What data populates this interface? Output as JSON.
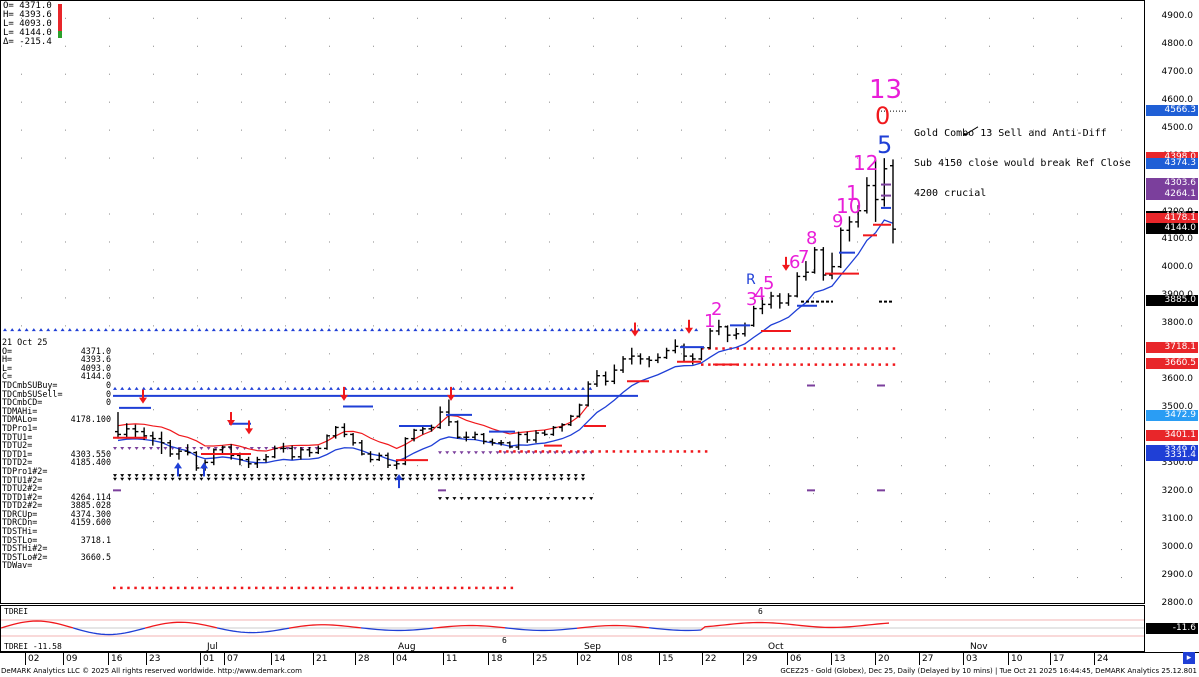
{
  "ohlc_box": {
    "lines": [
      "O= 4371.0",
      "H= 4393.6",
      "L= 4093.0",
      "L= 4144.0",
      "Δ= -215.4"
    ]
  },
  "info_panel": {
    "date": "21 Oct 25",
    "rows": [
      {
        "label": "O=",
        "value": "4371.0"
      },
      {
        "label": "H=",
        "value": "4393.6"
      },
      {
        "label": "L=",
        "value": "4093.0"
      },
      {
        "label": "C=",
        "value": "4144.0"
      },
      {
        "label": "TDCmbSUBuy=",
        "value": "0"
      },
      {
        "label": "TDCmbSUSell=",
        "value": "0"
      },
      {
        "label": "TDCmbCD=",
        "value": "0"
      },
      {
        "label": "TDMAHi=",
        "value": ""
      },
      {
        "label": "TDMALo=",
        "value": "4178.100"
      },
      {
        "label": "TDPro1=",
        "value": ""
      },
      {
        "label": "TDTU1=",
        "value": ""
      },
      {
        "label": "TDTU2=",
        "value": ""
      },
      {
        "label": "TDTD1=",
        "value": "4303.550"
      },
      {
        "label": "TDTD2=",
        "value": "4185.400"
      },
      {
        "label": "TDPro1#2=",
        "value": ""
      },
      {
        "label": "TDTU1#2=",
        "value": ""
      },
      {
        "label": "TDTU2#2=",
        "value": ""
      },
      {
        "label": "TDTD1#2=",
        "value": "4264.114"
      },
      {
        "label": "TDTD2#2=",
        "value": "3885.028"
      },
      {
        "label": "TDRCUp=",
        "value": "4374.300"
      },
      {
        "label": "TDRCDn=",
        "value": "4159.600"
      },
      {
        "label": "TDSTHi=",
        "value": ""
      },
      {
        "label": "TDSTLo=",
        "value": "3718.1"
      },
      {
        "label": "TDSTHi#2=",
        "value": ""
      },
      {
        "label": "TDSTLo#2=",
        "value": "3660.5"
      },
      {
        "label": "TDWav=",
        "value": ""
      }
    ]
  },
  "annotation": {
    "lines": [
      "Gold Combo 13 Sell and Anti-Diff",
      "Sub 4150 close would break Ref Close",
      "4200 crucial"
    ]
  },
  "count_labels": {
    "combo13": "13",
    "zero": "0",
    "five": "5",
    "twelve": "12",
    "eleven": "1",
    "ten": "10",
    "nine": "9",
    "eight": "8",
    "seven": "7",
    "six": "6",
    "r": "R",
    "five_b": "5",
    "four": "4",
    "three": "3",
    "two": "2",
    "one": "1"
  },
  "price_axis": {
    "ticks": [
      "4900.0",
      "4800.0",
      "4700.0",
      "4600.0",
      "4500.0",
      "4400.0",
      "4200.0",
      "4100.0",
      "4000.0",
      "3900.0",
      "3800.0",
      "3700.0",
      "3600.0",
      "3500.0",
      "3400.0",
      "3300.0",
      "3200.0",
      "3100.0",
      "3000.0",
      "2900.0",
      "2800.0"
    ],
    "labels": [
      {
        "text": "4566.3",
        "color": "#1f5fd6"
      },
      {
        "text": "4398.0",
        "color": "#e8262a"
      },
      {
        "text": "4374.3",
        "color": "#1f5fd6"
      },
      {
        "text": "4303.6",
        "color": "#7b3f9c"
      },
      {
        "text": "4264.1",
        "color": "#7b3f9c"
      },
      {
        "text": "4185.4",
        "color": "#000000"
      },
      {
        "text": "4178.1",
        "color": "#e8262a"
      },
      {
        "text": "4144.0",
        "color": "#000000"
      },
      {
        "text": "3885.0",
        "color": "#000000"
      },
      {
        "text": "3718.1",
        "color": "#e8262a"
      },
      {
        "text": "3660.5",
        "color": "#e8262a"
      },
      {
        "text": "3472.9",
        "color": "#2a9df4"
      },
      {
        "text": "3401.1",
        "color": "#e8262a"
      },
      {
        "text": "3349.0",
        "color": "#1f3fd6"
      },
      {
        "text": "3331.4",
        "color": "#1f3fd6"
      }
    ]
  },
  "sub_panel": {
    "label": "TDREI",
    "value_text": "TDREI  -11.58",
    "axis_label": "-11.6",
    "six_top": "6",
    "six_bottom": "6"
  },
  "date_axis": {
    "months": [
      "Jul",
      "Aug",
      "Sep",
      "Oct",
      "Nov"
    ],
    "days": [
      "02",
      "09",
      "16",
      "23",
      "01",
      "07",
      "14",
      "21",
      "28",
      "04",
      "11",
      "18",
      "25",
      "02",
      "08",
      "15",
      "22",
      "29",
      "06",
      "13",
      "20",
      "27",
      "03",
      "10",
      "17",
      "24"
    ]
  },
  "footer": {
    "left": "DeMARK Analytics LLC © 2025 All rights reserved worldwide. http://www.demark.com",
    "right": "GCEZ25 - Gold (Globex), Dec 25, Daily (Delayed by 10 mins) | Tue Oct 21 2025 16:44:45, DeMARK Analytics 25.12.801"
  },
  "chart_data": {
    "type": "ohlc",
    "title": "GCEZ25 - Gold (Globex), Dec 25, Daily",
    "ylim": [
      2800,
      4960
    ],
    "bars": [
      {
        "date": "2025-06-16",
        "o": 3420,
        "h": 3490,
        "l": 3395,
        "c": 3410
      },
      {
        "date": "2025-06-17",
        "o": 3410,
        "h": 3450,
        "l": 3395,
        "c": 3430
      },
      {
        "date": "2025-06-18",
        "o": 3430,
        "h": 3445,
        "l": 3400,
        "c": 3420
      },
      {
        "date": "2025-06-19",
        "o": 3420,
        "h": 3435,
        "l": 3390,
        "c": 3405
      },
      {
        "date": "2025-06-20",
        "o": 3405,
        "h": 3420,
        "l": 3370,
        "c": 3395
      },
      {
        "date": "2025-06-23",
        "o": 3395,
        "h": 3420,
        "l": 3340,
        "c": 3380
      },
      {
        "date": "2025-06-24",
        "o": 3380,
        "h": 3390,
        "l": 3330,
        "c": 3340
      },
      {
        "date": "2025-06-25",
        "o": 3340,
        "h": 3360,
        "l": 3320,
        "c": 3350
      },
      {
        "date": "2025-06-26",
        "o": 3350,
        "h": 3375,
        "l": 3335,
        "c": 3345
      },
      {
        "date": "2025-06-27",
        "o": 3345,
        "h": 3350,
        "l": 3280,
        "c": 3290
      },
      {
        "date": "2025-06-30",
        "o": 3290,
        "h": 3320,
        "l": 3280,
        "c": 3310
      },
      {
        "date": "2025-07-01",
        "o": 3310,
        "h": 3360,
        "l": 3300,
        "c": 3355
      },
      {
        "date": "2025-07-02",
        "o": 3355,
        "h": 3370,
        "l": 3340,
        "c": 3365
      },
      {
        "date": "2025-07-03",
        "o": 3365,
        "h": 3375,
        "l": 3320,
        "c": 3335
      },
      {
        "date": "2025-07-07",
        "o": 3335,
        "h": 3345,
        "l": 3300,
        "c": 3320
      },
      {
        "date": "2025-07-08",
        "o": 3320,
        "h": 3330,
        "l": 3290,
        "c": 3305
      },
      {
        "date": "2025-07-09",
        "o": 3305,
        "h": 3330,
        "l": 3290,
        "c": 3320
      },
      {
        "date": "2025-07-10",
        "o": 3320,
        "h": 3340,
        "l": 3310,
        "c": 3330
      },
      {
        "date": "2025-07-11",
        "o": 3330,
        "h": 3370,
        "l": 3325,
        "c": 3360
      },
      {
        "date": "2025-07-14",
        "o": 3360,
        "h": 3380,
        "l": 3345,
        "c": 3360
      },
      {
        "date": "2025-07-15",
        "o": 3360,
        "h": 3370,
        "l": 3320,
        "c": 3330
      },
      {
        "date": "2025-07-16",
        "o": 3330,
        "h": 3365,
        "l": 3320,
        "c": 3355
      },
      {
        "date": "2025-07-17",
        "o": 3355,
        "h": 3365,
        "l": 3330,
        "c": 3345
      },
      {
        "date": "2025-07-18",
        "o": 3345,
        "h": 3370,
        "l": 3340,
        "c": 3360
      },
      {
        "date": "2025-07-21",
        "o": 3360,
        "h": 3410,
        "l": 3355,
        "c": 3405
      },
      {
        "date": "2025-07-22",
        "o": 3405,
        "h": 3440,
        "l": 3395,
        "c": 3435
      },
      {
        "date": "2025-07-23",
        "o": 3435,
        "h": 3450,
        "l": 3400,
        "c": 3410
      },
      {
        "date": "2025-07-24",
        "o": 3410,
        "h": 3415,
        "l": 3370,
        "c": 3380
      },
      {
        "date": "2025-07-25",
        "o": 3380,
        "h": 3390,
        "l": 3335,
        "c": 3340
      },
      {
        "date": "2025-07-28",
        "o": 3340,
        "h": 3350,
        "l": 3310,
        "c": 3320
      },
      {
        "date": "2025-07-29",
        "o": 3320,
        "h": 3345,
        "l": 3315,
        "c": 3335
      },
      {
        "date": "2025-07-30",
        "o": 3335,
        "h": 3345,
        "l": 3290,
        "c": 3300
      },
      {
        "date": "2025-07-31",
        "o": 3300,
        "h": 3320,
        "l": 3285,
        "c": 3305
      },
      {
        "date": "2025-08-01",
        "o": 3305,
        "h": 3400,
        "l": 3300,
        "c": 3395
      },
      {
        "date": "2025-08-04",
        "o": 3395,
        "h": 3430,
        "l": 3385,
        "c": 3425
      },
      {
        "date": "2025-08-05",
        "o": 3425,
        "h": 3440,
        "l": 3410,
        "c": 3430
      },
      {
        "date": "2025-08-06",
        "o": 3430,
        "h": 3445,
        "l": 3420,
        "c": 3435
      },
      {
        "date": "2025-08-07",
        "o": 3435,
        "h": 3510,
        "l": 3430,
        "c": 3490
      },
      {
        "date": "2025-08-08",
        "o": 3490,
        "h": 3535,
        "l": 3440,
        "c": 3455
      },
      {
        "date": "2025-08-11",
        "o": 3455,
        "h": 3460,
        "l": 3395,
        "c": 3400
      },
      {
        "date": "2025-08-12",
        "o": 3400,
        "h": 3420,
        "l": 3385,
        "c": 3400
      },
      {
        "date": "2025-08-13",
        "o": 3400,
        "h": 3420,
        "l": 3390,
        "c": 3410
      },
      {
        "date": "2025-08-14",
        "o": 3410,
        "h": 3415,
        "l": 3375,
        "c": 3385
      },
      {
        "date": "2025-08-15",
        "o": 3385,
        "h": 3395,
        "l": 3370,
        "c": 3380
      },
      {
        "date": "2025-08-18",
        "o": 3380,
        "h": 3390,
        "l": 3370,
        "c": 3380
      },
      {
        "date": "2025-08-19",
        "o": 3380,
        "h": 3385,
        "l": 3360,
        "c": 3365
      },
      {
        "date": "2025-08-20",
        "o": 3365,
        "h": 3420,
        "l": 3355,
        "c": 3410
      },
      {
        "date": "2025-08-21",
        "o": 3410,
        "h": 3420,
        "l": 3380,
        "c": 3390
      },
      {
        "date": "2025-08-22",
        "o": 3390,
        "h": 3425,
        "l": 3380,
        "c": 3415
      },
      {
        "date": "2025-08-25",
        "o": 3415,
        "h": 3425,
        "l": 3405,
        "c": 3410
      },
      {
        "date": "2025-08-26",
        "o": 3410,
        "h": 3440,
        "l": 3405,
        "c": 3435
      },
      {
        "date": "2025-08-27",
        "o": 3435,
        "h": 3450,
        "l": 3420,
        "c": 3445
      },
      {
        "date": "2025-08-28",
        "o": 3445,
        "h": 3480,
        "l": 3440,
        "c": 3475
      },
      {
        "date": "2025-08-29",
        "o": 3475,
        "h": 3520,
        "l": 3470,
        "c": 3515
      },
      {
        "date": "2025-09-02",
        "o": 3515,
        "h": 3600,
        "l": 3510,
        "c": 3590
      },
      {
        "date": "2025-09-03",
        "o": 3590,
        "h": 3640,
        "l": 3580,
        "c": 3620
      },
      {
        "date": "2025-09-04",
        "o": 3620,
        "h": 3635,
        "l": 3585,
        "c": 3600
      },
      {
        "date": "2025-09-05",
        "o": 3600,
        "h": 3660,
        "l": 3590,
        "c": 3640
      },
      {
        "date": "2025-09-08",
        "o": 3640,
        "h": 3690,
        "l": 3630,
        "c": 3680
      },
      {
        "date": "2025-09-09",
        "o": 3680,
        "h": 3720,
        "l": 3660,
        "c": 3690
      },
      {
        "date": "2025-09-10",
        "o": 3690,
        "h": 3700,
        "l": 3660,
        "c": 3680
      },
      {
        "date": "2025-09-11",
        "o": 3680,
        "h": 3690,
        "l": 3650,
        "c": 3675
      },
      {
        "date": "2025-09-12",
        "o": 3675,
        "h": 3700,
        "l": 3665,
        "c": 3685
      },
      {
        "date": "2025-09-15",
        "o": 3685,
        "h": 3720,
        "l": 3680,
        "c": 3710
      },
      {
        "date": "2025-09-16",
        "o": 3710,
        "h": 3750,
        "l": 3700,
        "c": 3725
      },
      {
        "date": "2025-09-17",
        "o": 3725,
        "h": 3735,
        "l": 3670,
        "c": 3690
      },
      {
        "date": "2025-09-18",
        "o": 3690,
        "h": 3700,
        "l": 3660,
        "c": 3680
      },
      {
        "date": "2025-09-19",
        "o": 3680,
        "h": 3725,
        "l": 3675,
        "c": 3720
      },
      {
        "date": "2025-09-22",
        "o": 3720,
        "h": 3790,
        "l": 3715,
        "c": 3780
      },
      {
        "date": "2025-09-23",
        "o": 3780,
        "h": 3820,
        "l": 3765,
        "c": 3795
      },
      {
        "date": "2025-09-24",
        "o": 3795,
        "h": 3800,
        "l": 3740,
        "c": 3765
      },
      {
        "date": "2025-09-25",
        "o": 3765,
        "h": 3790,
        "l": 3750,
        "c": 3770
      },
      {
        "date": "2025-09-26",
        "o": 3770,
        "h": 3810,
        "l": 3760,
        "c": 3800
      },
      {
        "date": "2025-09-29",
        "o": 3800,
        "h": 3870,
        "l": 3795,
        "c": 3860
      },
      {
        "date": "2025-09-30",
        "o": 3860,
        "h": 3900,
        "l": 3840,
        "c": 3875
      },
      {
        "date": "2025-10-01",
        "o": 3875,
        "h": 3920,
        "l": 3860,
        "c": 3905
      },
      {
        "date": "2025-10-02",
        "o": 3905,
        "h": 3915,
        "l": 3860,
        "c": 3880
      },
      {
        "date": "2025-10-03",
        "o": 3880,
        "h": 3915,
        "l": 3870,
        "c": 3905
      },
      {
        "date": "2025-10-06",
        "o": 3905,
        "h": 3990,
        "l": 3900,
        "c": 3975
      },
      {
        "date": "2025-10-07",
        "o": 3975,
        "h": 4030,
        "l": 3960,
        "c": 3990
      },
      {
        "date": "2025-10-08",
        "o": 3990,
        "h": 4080,
        "l": 3985,
        "c": 4070
      },
      {
        "date": "2025-10-09",
        "o": 4070,
        "h": 4080,
        "l": 3960,
        "c": 3980
      },
      {
        "date": "2025-10-10",
        "o": 3980,
        "h": 4060,
        "l": 3965,
        "c": 4010
      },
      {
        "date": "2025-10-13",
        "o": 4010,
        "h": 4150,
        "l": 4005,
        "c": 4140
      },
      {
        "date": "2025-10-14",
        "o": 4140,
        "h": 4190,
        "l": 4100,
        "c": 4170
      },
      {
        "date": "2025-10-15",
        "o": 4170,
        "h": 4230,
        "l": 4150,
        "c": 4210
      },
      {
        "date": "2025-10-16",
        "o": 4210,
        "h": 4330,
        "l": 4200,
        "c": 4300
      },
      {
        "date": "2025-10-17",
        "o": 4300,
        "h": 4392,
        "l": 4170,
        "c": 4250
      },
      {
        "date": "2025-10-20",
        "o": 4250,
        "h": 4398,
        "l": 4225,
        "c": 4360
      },
      {
        "date": "2025-10-21",
        "o": 4371,
        "h": 4393.6,
        "l": 4093,
        "c": 4144
      }
    ],
    "horizontal_levels": [
      {
        "name": "TDSTLo",
        "value": 3718.1
      },
      {
        "name": "TDSTLo#2",
        "value": 3660.5
      },
      {
        "name": "TDMALo",
        "value": 4178.1
      },
      {
        "name": "TDTD1",
        "value": 4303.55
      },
      {
        "name": "TDTD2",
        "value": 4185.4
      },
      {
        "name": "TDRCUp",
        "value": 4374.3
      },
      {
        "name": "TDRCDn",
        "value": 4159.6
      }
    ],
    "tdrei_last": -11.58
  }
}
